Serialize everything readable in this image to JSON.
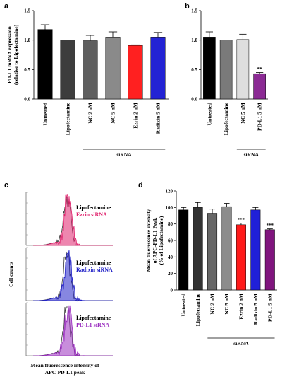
{
  "panels": {
    "a": "a",
    "b": "b",
    "c": "c",
    "d": "d"
  },
  "chart_data": [
    {
      "id": "a",
      "type": "bar",
      "ylabel": "PD-L1 mRNA expression\n(relative to Lipofectamine)",
      "ylim": [
        0,
        1.5
      ],
      "yticks": [
        "0.0",
        "0.5",
        "1.0",
        "1.5"
      ],
      "categories": [
        "Untreated",
        "Lipofectamine",
        "NC 2 nM",
        "NC 5 nM",
        "Ezrin 2 nM",
        "Radixin 5 nM"
      ],
      "values": [
        1.18,
        1.0,
        0.99,
        1.04,
        0.91,
        1.04
      ],
      "errors": [
        0.08,
        0.0,
        0.09,
        0.1,
        0.01,
        0.09
      ],
      "colors": [
        "#000000",
        "#3d3d3d",
        "#5f5f5f",
        "#8a8a8a",
        "#ff2020",
        "#2323d4"
      ],
      "significance": [
        "",
        "",
        "",
        "",
        "",
        ""
      ],
      "group_label": "siRNA",
      "group_start": 2,
      "group_end": 5
    },
    {
      "id": "b",
      "type": "bar",
      "ylabel": "",
      "ylim": [
        0,
        1.5
      ],
      "yticks": [
        "0.0",
        "0.5",
        "1.0",
        "1.5"
      ],
      "categories": [
        "Untreated",
        "Lipofectamine",
        "NC 5 nM",
        "PD-L1 5 nM"
      ],
      "values": [
        1.04,
        1.0,
        1.01,
        0.43
      ],
      "errors": [
        0.1,
        0.0,
        0.09,
        0.02
      ],
      "colors": [
        "#000000",
        "#7a7a7a",
        "#dedede",
        "#8b2a94"
      ],
      "significance": [
        "",
        "",
        "",
        "**"
      ],
      "group_label": "siRNA",
      "group_start": 2,
      "group_end": 3
    },
    {
      "id": "d",
      "type": "bar",
      "ylabel": "Mean fluorescence intensity\nof APC-PD-L1 Peak\n(% of Lipofectamine)",
      "ylim": [
        0,
        120
      ],
      "yticks": [
        "0",
        "20",
        "40",
        "60",
        "80",
        "100",
        "120"
      ],
      "categories": [
        "Untreated",
        "Lipofectamine",
        "NC 2 nM",
        "NC 5 nM",
        "Ezrin 2 nM",
        "Radixin 5 nM",
        "PD-L1 5 nM"
      ],
      "values": [
        97,
        100,
        93,
        101,
        79,
        97,
        73
      ],
      "errors": [
        3,
        6,
        5,
        4,
        2,
        3,
        1
      ],
      "colors": [
        "#000000",
        "#333333",
        "#666666",
        "#8c8c8c",
        "#ff1a1a",
        "#2020d8",
        "#80157e"
      ],
      "significance": [
        "",
        "",
        "",
        "",
        "***",
        "",
        "***"
      ],
      "group_label": "siRNA",
      "group_start": 2,
      "group_end": 6
    },
    {
      "id": "c",
      "type": "histogram-overlay",
      "ylabel": "Cell counts",
      "xlabel": "Mean fluorescence intensity of\nAPC-PD-L1 peak",
      "legends": [
        {
          "control": "Lipofectamine",
          "treated": "Ezrin siRNA",
          "treated_color": "#e0236d"
        },
        {
          "control": "Lipofectamine",
          "treated": "Radixin siRNA",
          "treated_color": "#2525c8"
        },
        {
          "control": "Lipofectamine",
          "treated": "PD-L1 siRNA",
          "treated_color": "#9b2fc0"
        }
      ]
    }
  ]
}
